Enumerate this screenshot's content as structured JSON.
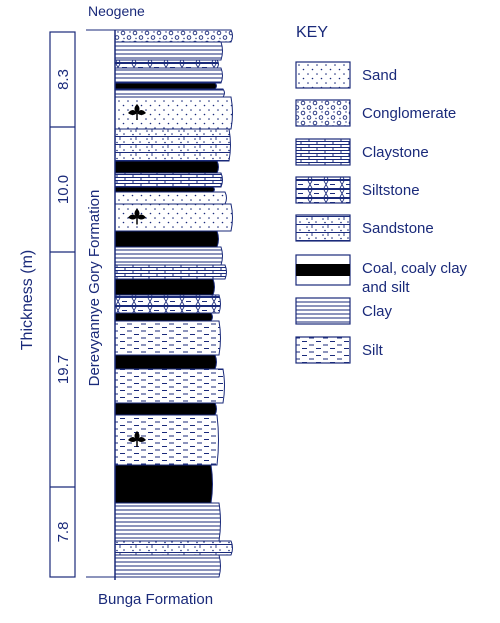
{
  "colors": {
    "ink": "#1a2a7a",
    "black": "#000000",
    "paper": "#ffffff"
  },
  "labels": {
    "top_unit": "Neogene",
    "bottom_unit": "Bunga Formation",
    "formation": "Derevyannye Gory Formation",
    "thickness_axis": "Thickness (m)"
  },
  "thickness_intervals": [
    "8.3",
    "10.0",
    "19.7",
    "7.8"
  ],
  "key": {
    "title": "KEY",
    "items": [
      {
        "id": "sand",
        "label": "Sand"
      },
      {
        "id": "conglomerate",
        "label": "Conglomerate"
      },
      {
        "id": "claystone",
        "label": "Claystone"
      },
      {
        "id": "siltstone",
        "label": "Siltstone"
      },
      {
        "id": "sandstone",
        "label": "Sandstone"
      },
      {
        "id": "coal",
        "label": "Coal, coaly clay",
        "label_line2": "and silt"
      },
      {
        "id": "clay",
        "label": "Clay"
      },
      {
        "id": "silt",
        "label": "Silt"
      }
    ]
  },
  "column_layers": [
    {
      "lithology": "conglomerate"
    },
    {
      "lithology": "clay"
    },
    {
      "lithology": "siltstone"
    },
    {
      "lithology": "clay"
    },
    {
      "lithology": "coal"
    },
    {
      "lithology": "clay"
    },
    {
      "lithology": "sand",
      "fossil": true
    },
    {
      "lithology": "sandstone"
    },
    {
      "lithology": "coal"
    },
    {
      "lithology": "claystone"
    },
    {
      "lithology": "coal"
    },
    {
      "lithology": "sand"
    },
    {
      "lithology": "sand",
      "fossil": true
    },
    {
      "lithology": "coal"
    },
    {
      "lithology": "clay"
    },
    {
      "lithology": "claystone"
    },
    {
      "lithology": "coal"
    },
    {
      "lithology": "siltstone"
    },
    {
      "lithology": "coal"
    },
    {
      "lithology": "silt"
    },
    {
      "lithology": "coal"
    },
    {
      "lithology": "silt"
    },
    {
      "lithology": "coal"
    },
    {
      "lithology": "silt",
      "fossil": true
    },
    {
      "lithology": "coal"
    },
    {
      "lithology": "clay"
    },
    {
      "lithology": "sandstone"
    },
    {
      "lithology": "clay"
    }
  ]
}
